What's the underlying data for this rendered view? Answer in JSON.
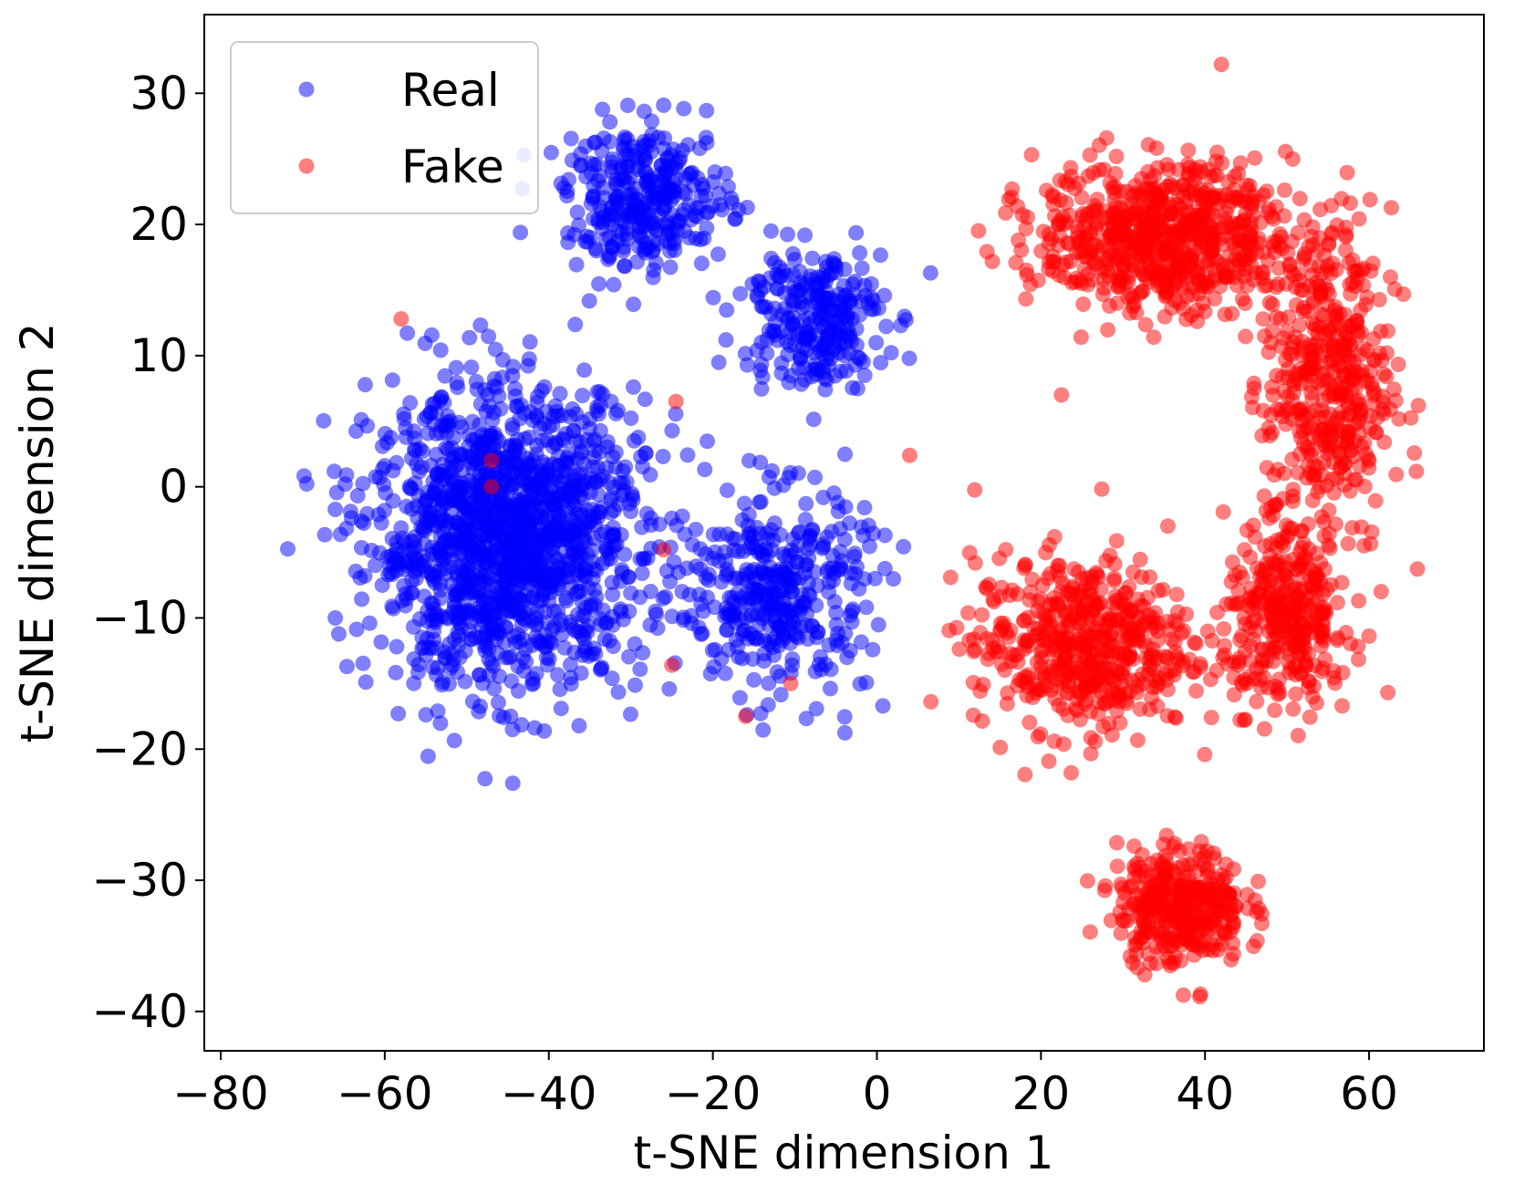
{
  "chart_data": {
    "type": "scatter",
    "title": "",
    "xlabel": "t-SNE dimension 1",
    "ylabel": "t-SNE dimension 2",
    "xlim": [
      -82,
      74
    ],
    "ylim": [
      -43,
      36
    ],
    "xticks": [
      -80,
      -60,
      -40,
      -20,
      0,
      20,
      40,
      60
    ],
    "yticks": [
      -40,
      -30,
      -20,
      -10,
      0,
      10,
      20,
      30
    ],
    "xtick_labels": [
      "−80",
      "−60",
      "−40",
      "−20",
      "0",
      "20",
      "40",
      "60"
    ],
    "ytick_labels": [
      "−40",
      "−30",
      "−20",
      "−10",
      "0",
      "10",
      "20",
      "30"
    ],
    "grid": false,
    "legend_position": "top-left",
    "series": [
      {
        "name": "Real",
        "color": "#0000ff",
        "clusters": [
          {
            "region": "left main blob",
            "center": [
              -45,
              -4
            ],
            "spread": [
              15,
              10
            ],
            "count": 1500
          },
          {
            "region": "upper mid arm",
            "center": [
              -28,
              22
            ],
            "spread": [
              9,
              5
            ],
            "count": 320
          },
          {
            "region": "upper bridge",
            "center": [
              -8,
              13
            ],
            "spread": [
              8,
              5
            ],
            "count": 260
          },
          {
            "region": "center lower",
            "center": [
              -12,
              -8
            ],
            "spread": [
              10,
              7
            ],
            "count": 380
          }
        ]
      },
      {
        "name": "Fake",
        "color": "#ff0000",
        "clusters": [
          {
            "region": "upper right arc",
            "center": [
              35,
              19
            ],
            "spread": [
              14,
              5
            ],
            "count": 700
          },
          {
            "region": "right side",
            "center": [
              55,
              8
            ],
            "spread": [
              7,
              12
            ],
            "count": 450
          },
          {
            "region": "lower middle",
            "center": [
              25,
              -12
            ],
            "spread": [
              12,
              6
            ],
            "count": 520
          },
          {
            "region": "lower tail",
            "center": [
              37,
              -32
            ],
            "spread": [
              7,
              4
            ],
            "count": 360
          },
          {
            "region": "center right",
            "center": [
              50,
              -10
            ],
            "spread": [
              7,
              6
            ],
            "count": 320
          }
        ],
        "scattered_points": [
          [
            -58,
            12.8
          ],
          [
            -24.5,
            6.5
          ],
          [
            -47,
            2
          ],
          [
            -47,
            0
          ],
          [
            4,
            2.4
          ],
          [
            22.5,
            7
          ],
          [
            -26,
            -4.8
          ],
          [
            -25,
            -13.6
          ],
          [
            -16,
            -17.5
          ],
          [
            28,
            26.6
          ],
          [
            42,
            32.2
          ],
          [
            -10.5,
            -15
          ]
        ]
      }
    ]
  }
}
